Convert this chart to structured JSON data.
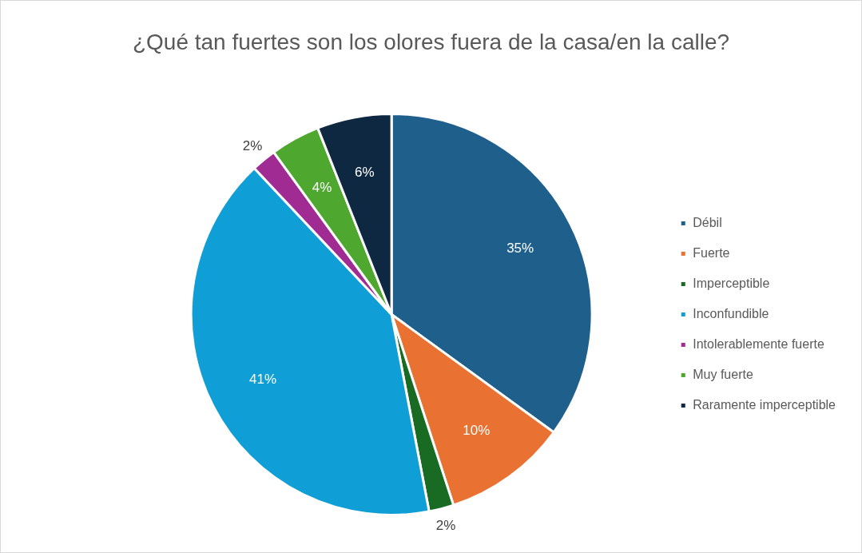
{
  "chart_data": {
    "type": "pie",
    "title": "¿Qué tan fuertes son los olores fuera de la casa/en la calle?",
    "categories": [
      "Débil",
      "Fuerte",
      "Imperceptible",
      "Inconfundible",
      "Intolerablemente fuerte",
      "Muy fuerte",
      "Raramente imperceptible"
    ],
    "values": [
      35,
      10,
      2,
      41,
      2,
      4,
      6
    ],
    "colors": [
      "#1f5f8b",
      "#e97132",
      "#196b24",
      "#0f9ed5",
      "#a02b93",
      "#4ea72e",
      "#0e2841"
    ],
    "value_labels": [
      "35%",
      "10%",
      "2%",
      "41%",
      "2%",
      "4%",
      "6%"
    ],
    "legend": "right"
  }
}
